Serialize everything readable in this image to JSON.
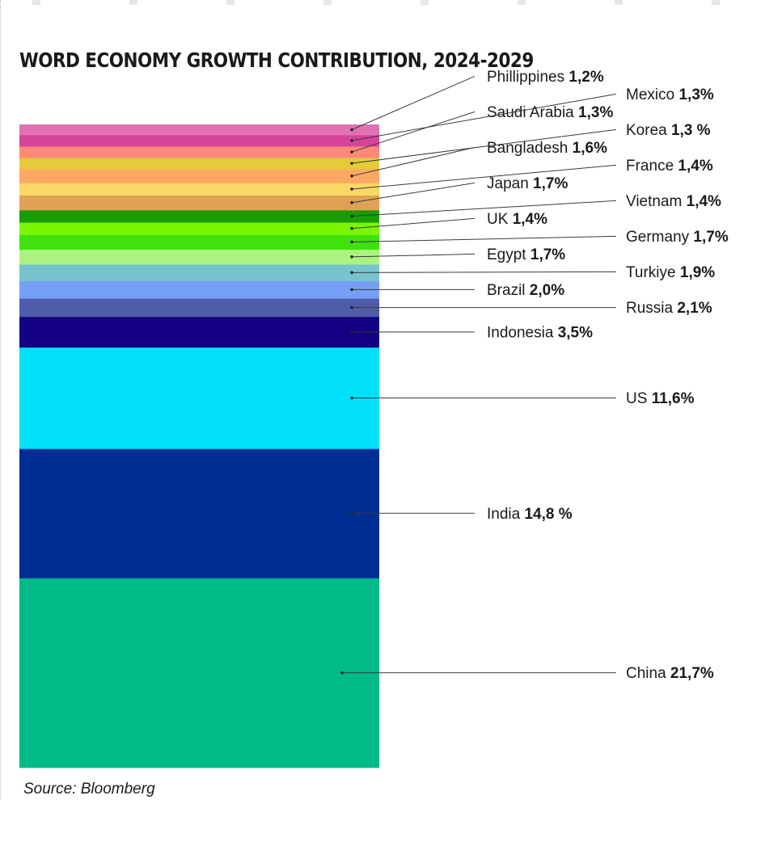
{
  "chart_data": {
    "type": "bar",
    "stacked": true,
    "title": "WORD ECONOMY GROWTH CONTRIBUTION, 2024-2029",
    "source": "Source: Bloomberg",
    "segments": [
      {
        "country": "China",
        "value_text": "21,7%",
        "value": 21.7,
        "color": "#00BA88"
      },
      {
        "country": "India",
        "value_text": "14,8 %",
        "value": 14.8,
        "color": "#002D94"
      },
      {
        "country": "US",
        "value_text": "11,6%",
        "value": 11.6,
        "color": "#00E0F8"
      },
      {
        "country": "Indonesia",
        "value_text": "3,5%",
        "value": 3.5,
        "color": "#130082"
      },
      {
        "country": "Russia",
        "value_text": "2,1%",
        "value": 2.1,
        "color": "#4F5CA8"
      },
      {
        "country": "Brazil",
        "value_text": "2,0%",
        "value": 2.0,
        "color": "#76A0F7"
      },
      {
        "country": "Turkiye",
        "value_text": "1,9%",
        "value": 1.9,
        "color": "#77C4CE"
      },
      {
        "country": "Egypt",
        "value_text": "1,7%",
        "value": 1.7,
        "color": "#ACF281"
      },
      {
        "country": "Germany",
        "value_text": "1,7%",
        "value": 1.7,
        "color": "#3FE20D"
      },
      {
        "country": "UK",
        "value_text": "1,4%",
        "value": 1.4,
        "color": "#7CF600"
      },
      {
        "country": "Vietnam",
        "value_text": "1,4%",
        "value": 1.4,
        "color": "#1A9C05"
      },
      {
        "country": "Japan",
        "value_text": "1,7%",
        "value": 1.7,
        "color": "#DFA255"
      },
      {
        "country": "France",
        "value_text": "1,4%",
        "value": 1.4,
        "color": "#FAD864"
      },
      {
        "country": "Bangladesh",
        "value_text": "1,6%",
        "value": 1.6,
        "color": "#FDA865"
      },
      {
        "country": "Korea",
        "value_text": "1,3 %",
        "value": 1.3,
        "color": "#E3CB39"
      },
      {
        "country": "Saudi Arabia",
        "value_text": "1,3%",
        "value": 1.3,
        "color": "#FE8879"
      },
      {
        "country": "Mexico",
        "value_text": "1,3%",
        "value": 1.3,
        "color": "#D6449A"
      },
      {
        "country": "Phillippines",
        "value_text": "1,2%",
        "value": 1.2,
        "color": "#E072B3"
      }
    ]
  }
}
